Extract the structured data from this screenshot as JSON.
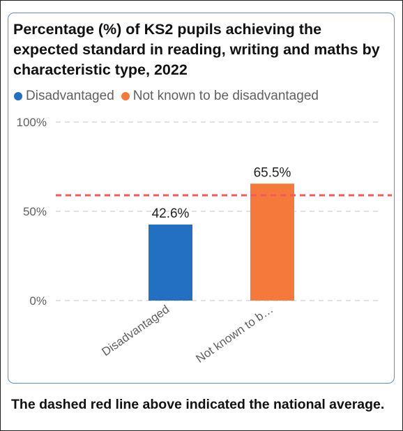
{
  "chart_data": {
    "type": "bar",
    "title": "Percentage (%) of KS2 pupils achieving the expected standard in reading, writing and maths by characteristic type, 2022",
    "categories": [
      "Disadvantaged",
      "Not known to be disadvantaged"
    ],
    "category_tick_labels": [
      "Disadvantaged",
      "Not known to b…"
    ],
    "values": [
      42.6,
      65.5
    ],
    "data_labels": [
      "42.6%",
      "65.5%"
    ],
    "colors": [
      "#2370c2",
      "#f5793b"
    ],
    "legend": [
      "Disadvantaged",
      "Not known to be disadvantaged"
    ],
    "legend_position": "top-left",
    "ylim": [
      0,
      100
    ],
    "y_ticks": [
      0,
      50,
      100
    ],
    "y_tick_labels": [
      "0%",
      "50%",
      "100%"
    ],
    "grid": true,
    "reference_line": {
      "value": 59,
      "color": "#f05a5a",
      "style": "dashed"
    },
    "xlabel": "",
    "ylabel": ""
  },
  "footnote": "The dashed red line above indicated the national average."
}
